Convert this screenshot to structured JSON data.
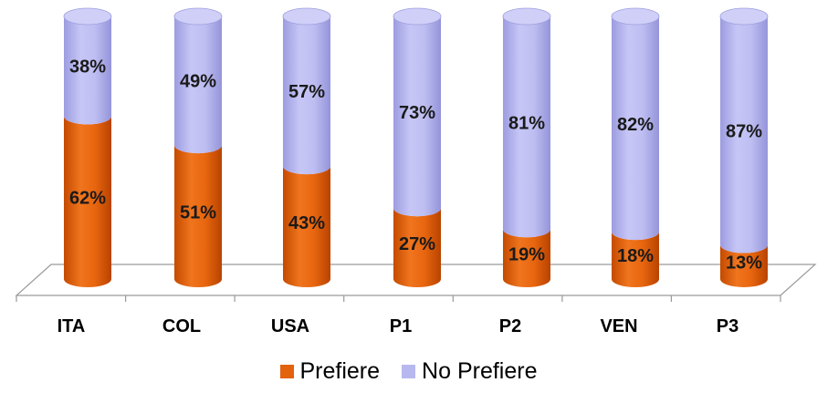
{
  "chart_data": {
    "type": "bar",
    "stacked": true,
    "percent": true,
    "categories": [
      "ITA",
      "COL",
      "USA",
      "P1",
      "P2",
      "VEN",
      "P3"
    ],
    "series": [
      {
        "name": "Prefiere",
        "values": [
          62,
          51,
          43,
          27,
          19,
          18,
          13
        ],
        "color": "#E2620E"
      },
      {
        "name": "No Prefiere",
        "values": [
          38,
          49,
          57,
          73,
          81,
          82,
          87
        ],
        "color": "#B8B8F0"
      }
    ],
    "value_labels": {
      "Prefiere": [
        "62%",
        "51%",
        "43%",
        "27%",
        "19%",
        "18%",
        "13%"
      ],
      "No Prefiere": [
        "38%",
        "49%",
        "57%",
        "73%",
        "81%",
        "82%",
        "87%"
      ]
    },
    "title": "",
    "xlabel": "",
    "ylabel": "",
    "ylim": [
      0,
      100
    ],
    "legend_position": "bottom",
    "style": "3d-cylinder"
  }
}
